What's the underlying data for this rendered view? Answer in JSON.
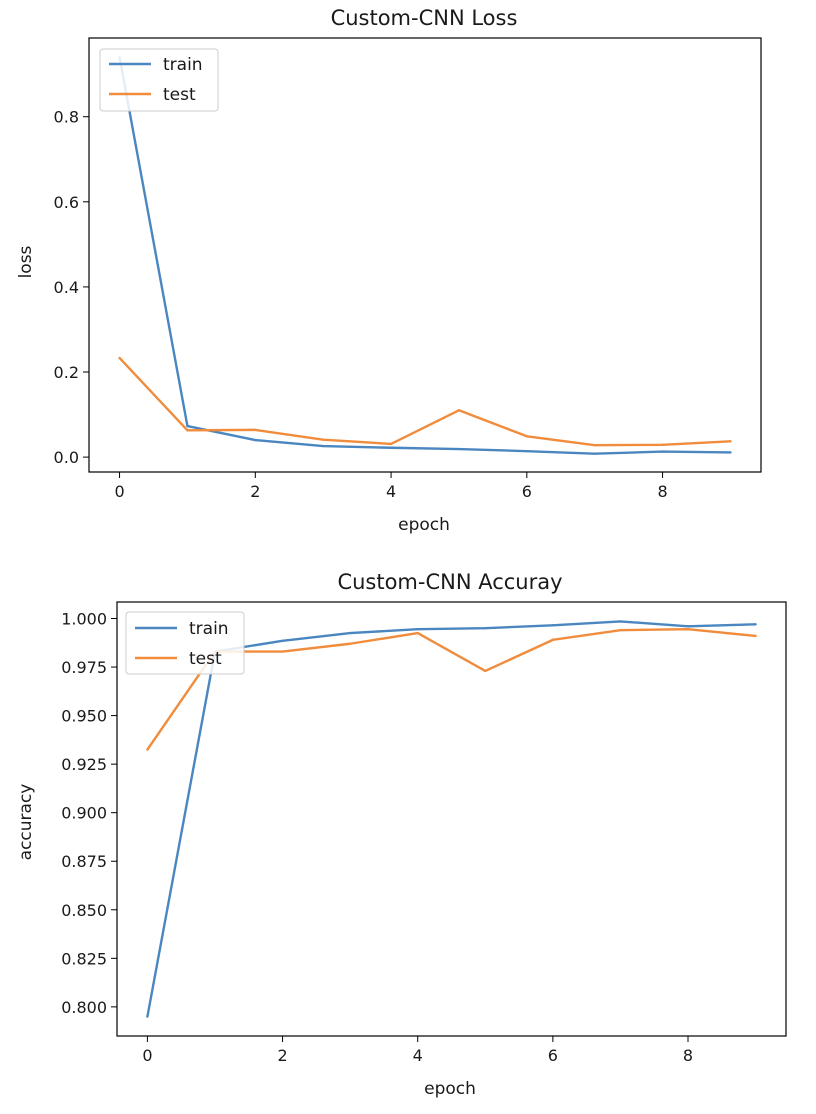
{
  "chart_data": [
    {
      "type": "line",
      "title": "Custom-CNN Loss",
      "xlabel": "epoch",
      "ylabel": "loss",
      "x": [
        0,
        1,
        2,
        3,
        4,
        5,
        6,
        7,
        8,
        9
      ],
      "xlim": [
        -0.45,
        9.45
      ],
      "ylim": [
        -0.035,
        0.985
      ],
      "xticks": [
        0,
        2,
        4,
        6,
        8
      ],
      "xtick_labels": [
        "0",
        "2",
        "4",
        "6",
        "8"
      ],
      "yticks": [
        0.0,
        0.2,
        0.4,
        0.6,
        0.8
      ],
      "ytick_labels": [
        "0.0",
        "0.2",
        "0.4",
        "0.6",
        "0.8"
      ],
      "legend_position": "top-left",
      "grid": false,
      "series": [
        {
          "name": "train",
          "color": "#4a86c0",
          "values": [
            0.94,
            0.073,
            0.04,
            0.026,
            0.022,
            0.019,
            0.014,
            0.008,
            0.013,
            0.011
          ]
        },
        {
          "name": "test",
          "color": "#f08c3c",
          "values": [
            0.233,
            0.063,
            0.064,
            0.041,
            0.031,
            0.11,
            0.049,
            0.028,
            0.029,
            0.037
          ]
        }
      ]
    },
    {
      "type": "line",
      "title": "Custom-CNN Accuray",
      "xlabel": "epoch",
      "ylabel": "accuracy",
      "x": [
        0,
        1,
        2,
        3,
        4,
        5,
        6,
        7,
        8,
        9
      ],
      "xlim": [
        -0.45,
        9.45
      ],
      "ylim": [
        0.785,
        1.0085
      ],
      "xticks": [
        0,
        2,
        4,
        6,
        8
      ],
      "xtick_labels": [
        "0",
        "2",
        "4",
        "6",
        "8"
      ],
      "yticks": [
        0.8,
        0.825,
        0.85,
        0.875,
        0.9,
        0.925,
        0.95,
        0.975,
        1.0
      ],
      "ytick_labels": [
        "0.800",
        "0.825",
        "0.850",
        "0.875",
        "0.900",
        "0.925",
        "0.950",
        "0.975",
        "1.000"
      ],
      "legend_position": "top-left",
      "grid": false,
      "series": [
        {
          "name": "train",
          "color": "#4a86c0",
          "values": [
            0.795,
            0.983,
            0.9885,
            0.9925,
            0.9945,
            0.995,
            0.9965,
            0.9985,
            0.996,
            0.997
          ]
        },
        {
          "name": "test",
          "color": "#f08c3c",
          "values": [
            0.9325,
            0.983,
            0.983,
            0.987,
            0.9925,
            0.973,
            0.989,
            0.994,
            0.9945,
            0.991
          ]
        }
      ]
    }
  ]
}
